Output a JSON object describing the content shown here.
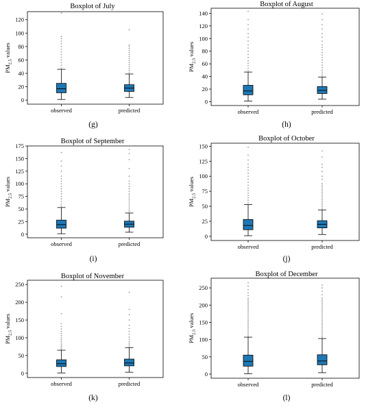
{
  "figure": {
    "box_color": "#1f77b4",
    "outlier_color": "#9a9a9a"
  },
  "chart_data": [
    {
      "type": "boxplot",
      "title": "Boxplot of July",
      "panel_label": "(g)",
      "ylabel": "PM2.5 values",
      "ylim": [
        -6,
        132
      ],
      "yticks": [
        0,
        20,
        40,
        60,
        80,
        100,
        120
      ],
      "categories": [
        "observed",
        "predicted"
      ],
      "boxes": [
        {
          "whisker_low": 1,
          "q1": 11,
          "median": 17,
          "q3": 25,
          "whisker_high": 46,
          "outliers": [
            48,
            52,
            56,
            60,
            64,
            68,
            72,
            76,
            80,
            84,
            88,
            92,
            95,
            130
          ]
        },
        {
          "whisker_low": 4,
          "q1": 13,
          "median": 18,
          "q3": 23,
          "whisker_high": 39,
          "outliers": [
            41,
            44,
            47,
            50,
            53,
            56,
            59,
            62,
            65,
            68,
            71,
            74,
            77,
            80,
            82,
            105
          ]
        }
      ]
    },
    {
      "type": "boxplot",
      "title": "Boxplot of August",
      "panel_label": "(h)",
      "ylabel": "PM2.5 values",
      "ylim": [
        -6,
        148
      ],
      "yticks": [
        0,
        20,
        40,
        60,
        80,
        100,
        120,
        140
      ],
      "categories": [
        "observed",
        "predicted"
      ],
      "boxes": [
        {
          "whisker_low": 1,
          "q1": 11,
          "median": 17,
          "q3": 26,
          "whisker_high": 47,
          "outliers": [
            49,
            53,
            57,
            61,
            65,
            70,
            75,
            80,
            85,
            90,
            96,
            102,
            108,
            115,
            122,
            130,
            143
          ]
        },
        {
          "whisker_low": 4,
          "q1": 13,
          "median": 18,
          "q3": 24,
          "whisker_high": 39,
          "outliers": [
            41,
            44,
            47,
            50,
            54,
            58,
            62,
            66,
            70,
            74,
            78,
            82,
            86,
            90,
            96,
            102,
            108,
            115,
            122,
            130,
            139
          ]
        }
      ]
    },
    {
      "type": "boxplot",
      "title": "Boxplot of September",
      "panel_label": "(i)",
      "ylabel": "PM2.5 values",
      "ylim": [
        -7,
        175
      ],
      "yticks": [
        0,
        25,
        50,
        75,
        100,
        125,
        150,
        175
      ],
      "categories": [
        "observed",
        "predicted"
      ],
      "boxes": [
        {
          "whisker_low": 1,
          "q1": 12,
          "median": 19,
          "q3": 28,
          "whisker_high": 53,
          "outliers": [
            56,
            60,
            65,
            70,
            75,
            80,
            85,
            90,
            95,
            100,
            105,
            110,
            115,
            125,
            135,
            145,
            162
          ]
        },
        {
          "whisker_low": 4,
          "q1": 14,
          "median": 20,
          "q3": 26,
          "whisker_high": 42,
          "outliers": [
            45,
            48,
            52,
            56,
            60,
            64,
            68,
            72,
            76,
            80,
            85,
            90,
            95,
            100,
            105,
            115,
            130,
            148,
            160,
            168
          ]
        }
      ]
    },
    {
      "type": "boxplot",
      "title": "Boxplot of October",
      "panel_label": "(j)",
      "ylabel": "PM2.5 values",
      "ylim": [
        -7,
        155
      ],
      "yticks": [
        0,
        25,
        50,
        75,
        100,
        125,
        150
      ],
      "categories": [
        "observed",
        "predicted"
      ],
      "boxes": [
        {
          "whisker_low": 1,
          "q1": 11,
          "median": 18,
          "q3": 28,
          "whisker_high": 53,
          "outliers": [
            56,
            60,
            64,
            68,
            72,
            76,
            80,
            85,
            90,
            95,
            100,
            105,
            110,
            115,
            120,
            127,
            135,
            148
          ]
        },
        {
          "whisker_low": 3,
          "q1": 14,
          "median": 20,
          "q3": 26,
          "whisker_high": 44,
          "outliers": [
            46,
            49,
            52,
            55,
            58,
            61,
            64,
            67,
            70,
            73,
            76,
            79,
            82,
            85,
            88,
            95,
            100,
            108,
            115,
            120,
            132,
            142
          ]
        }
      ]
    },
    {
      "type": "boxplot",
      "title": "Boxplot of November",
      "panel_label": "(k)",
      "ylabel": "PM2.5 values",
      "ylim": [
        -12,
        262
      ],
      "yticks": [
        0,
        50,
        100,
        150,
        200,
        250
      ],
      "categories": [
        "observed",
        "predicted"
      ],
      "boxes": [
        {
          "whisker_low": 1,
          "q1": 19,
          "median": 27,
          "q3": 38,
          "whisker_high": 65,
          "outliers": [
            68,
            72,
            76,
            80,
            85,
            90,
            95,
            100,
            106,
            112,
            118,
            125,
            132,
            140,
            168,
            215,
            245
          ]
        },
        {
          "whisker_low": 3,
          "q1": 21,
          "median": 29,
          "q3": 40,
          "whisker_high": 72,
          "outliers": [
            75,
            80,
            85,
            90,
            96,
            102,
            110,
            118,
            126,
            135,
            150,
            165,
            180,
            228
          ]
        }
      ]
    },
    {
      "type": "boxplot",
      "title": "Boxplot of December",
      "panel_label": "(l)",
      "ylabel": "PM2.5 values",
      "ylim": [
        -12,
        278
      ],
      "yticks": [
        0,
        50,
        100,
        150,
        200,
        250
      ],
      "categories": [
        "observed",
        "predicted"
      ],
      "boxes": [
        {
          "whisker_low": 1,
          "q1": 23,
          "median": 37,
          "q3": 55,
          "whisker_high": 107,
          "outliers": [
            110,
            115,
            120,
            125,
            130,
            135,
            140,
            145,
            150,
            155,
            160,
            165,
            170,
            175,
            180,
            185,
            190,
            195,
            200,
            205,
            210,
            215,
            220,
            228,
            236,
            245,
            255,
            265
          ]
        },
        {
          "whisker_low": 4,
          "q1": 27,
          "median": 38,
          "q3": 56,
          "whisker_high": 103,
          "outliers": [
            106,
            110,
            115,
            120,
            125,
            130,
            135,
            140,
            145,
            150,
            155,
            160,
            165,
            170,
            175,
            180,
            185,
            190,
            195,
            200,
            205,
            210,
            215,
            220,
            230,
            240,
            250,
            258
          ]
        }
      ]
    }
  ]
}
